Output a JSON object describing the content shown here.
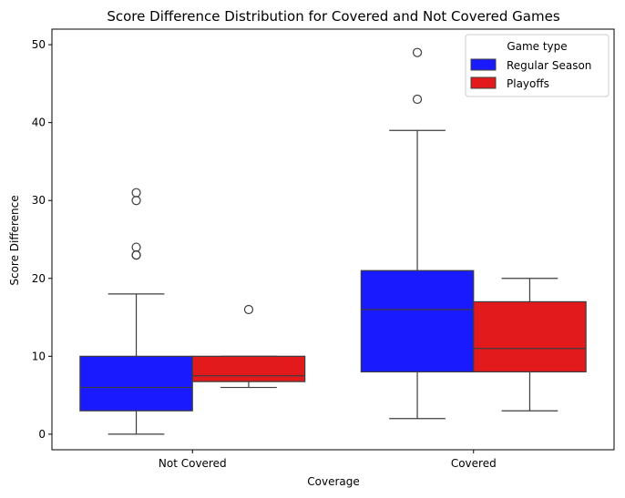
{
  "chart_data": {
    "type": "box",
    "title": "Score Difference Distribution for Covered and Not Covered Games",
    "xlabel": "Coverage",
    "ylabel": "Score Difference",
    "categories": [
      "Not Covered",
      "Covered"
    ],
    "ylim": [
      -2,
      52
    ],
    "yticks": [
      0,
      10,
      20,
      30,
      40,
      50
    ],
    "legend": {
      "title": "Game type",
      "position": "top-right"
    },
    "series": [
      {
        "name": "Regular Season",
        "color": "#1a1aff",
        "boxes": [
          {
            "category": "Not Covered",
            "min": 0,
            "q1": 3,
            "median": 6,
            "q3": 10,
            "max": 18,
            "outliers": [
              23,
              23,
              24,
              30,
              31
            ]
          },
          {
            "category": "Covered",
            "min": 2,
            "q1": 8,
            "median": 16,
            "q3": 21,
            "max": 39,
            "outliers": [
              43,
              49
            ]
          }
        ]
      },
      {
        "name": "Playoffs",
        "color": "#e31a1c",
        "boxes": [
          {
            "category": "Not Covered",
            "min": 6,
            "q1": 6.75,
            "median": 7.5,
            "q3": 10,
            "max": 10,
            "outliers": [
              16
            ]
          },
          {
            "category": "Covered",
            "min": 3,
            "q1": 8,
            "median": 11,
            "q3": 17,
            "max": 20,
            "outliers": []
          }
        ]
      }
    ]
  }
}
